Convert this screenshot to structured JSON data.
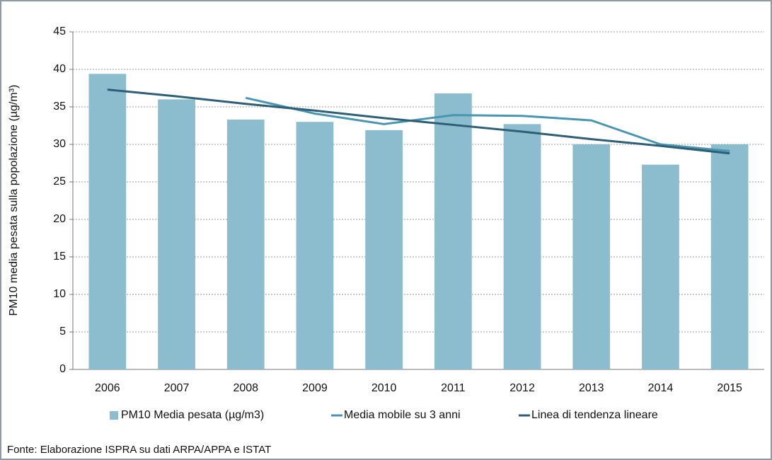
{
  "chart_data": {
    "type": "bar",
    "ylabel": "PM10 media pesata sulla popolazione  (µg/m³)",
    "categories": [
      "2006",
      "2007",
      "2008",
      "2009",
      "2010",
      "2011",
      "2012",
      "2013",
      "2014",
      "2015"
    ],
    "series": [
      {
        "name": "PM10 Media pesata (µg/m3)",
        "type": "bar",
        "color": "#8bbdcf",
        "values": [
          39.4,
          36.0,
          33.3,
          33.0,
          31.9,
          36.8,
          32.7,
          30.0,
          27.3,
          30.0
        ]
      },
      {
        "name": "Media mobile su 3 anni",
        "type": "line",
        "color": "#4a96b0",
        "values": [
          null,
          null,
          36.2,
          34.1,
          32.7,
          33.9,
          33.8,
          33.2,
          30.0,
          29.1
        ]
      },
      {
        "name": "Linea di tendenza lineare",
        "type": "line",
        "color": "#2e5f74",
        "values": [
          37.3,
          36.4,
          35.4,
          34.5,
          33.5,
          32.6,
          31.7,
          30.7,
          29.8,
          28.8
        ]
      }
    ],
    "ylim": [
      0,
      45
    ],
    "yticks": [
      0,
      5,
      10,
      15,
      20,
      25,
      30,
      35,
      40,
      45
    ],
    "grid": true,
    "legend": "bottom",
    "source": "Fonte: Elaborazione ISPRA su dati ARPA/APPA e ISTAT"
  }
}
